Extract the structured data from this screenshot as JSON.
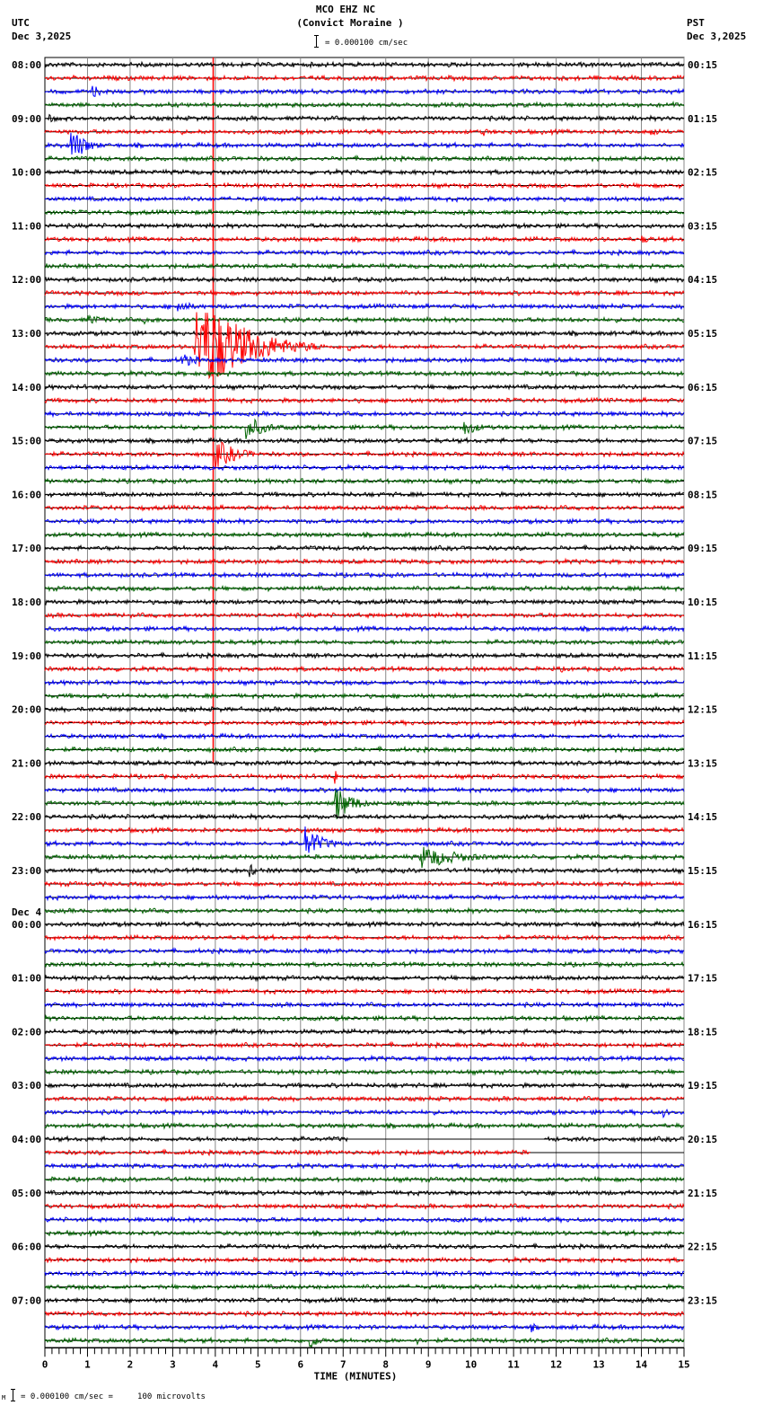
{
  "header": {
    "station": "MCO EHZ NC",
    "location": "(Convict Moraine )",
    "scale_text": "= 0.000100 cm/sec",
    "left_tz": "UTC",
    "left_date": "Dec 3,2025",
    "right_tz": "PST",
    "right_date": "Dec 3,2025"
  },
  "footer": {
    "scale_text": "= 0.000100 cm/sec =     100 microvolts",
    "marker": "M"
  },
  "chart_data": {
    "type": "seismogram",
    "title": "MCO EHZ NC (Convict Moraine )",
    "xlabel": "TIME (MINUTES)",
    "xlim": [
      0,
      15
    ],
    "x_ticks": [
      0,
      1,
      2,
      3,
      4,
      5,
      6,
      7,
      8,
      9,
      10,
      11,
      12,
      13,
      14,
      15
    ],
    "minor_ticks_per_minute": 6,
    "grid": true,
    "traces_per_hour": 4,
    "trace_colors": [
      "#000000",
      "#ff0000",
      "#0000ff",
      "#006400"
    ],
    "left_labels": [
      {
        "row": 0,
        "text": "08:00"
      },
      {
        "row": 4,
        "text": "09:00"
      },
      {
        "row": 8,
        "text": "10:00"
      },
      {
        "row": 12,
        "text": "11:00"
      },
      {
        "row": 16,
        "text": "12:00"
      },
      {
        "row": 20,
        "text": "13:00"
      },
      {
        "row": 24,
        "text": "14:00"
      },
      {
        "row": 28,
        "text": "15:00"
      },
      {
        "row": 32,
        "text": "16:00"
      },
      {
        "row": 36,
        "text": "17:00"
      },
      {
        "row": 40,
        "text": "18:00"
      },
      {
        "row": 44,
        "text": "19:00"
      },
      {
        "row": 48,
        "text": "20:00"
      },
      {
        "row": 52,
        "text": "21:00"
      },
      {
        "row": 56,
        "text": "22:00"
      },
      {
        "row": 60,
        "text": "23:00"
      },
      {
        "row": 64,
        "text": "00:00",
        "date": "Dec 4"
      },
      {
        "row": 68,
        "text": "01:00"
      },
      {
        "row": 72,
        "text": "02:00"
      },
      {
        "row": 76,
        "text": "03:00"
      },
      {
        "row": 80,
        "text": "04:00"
      },
      {
        "row": 84,
        "text": "05:00"
      },
      {
        "row": 88,
        "text": "06:00"
      },
      {
        "row": 92,
        "text": "07:00"
      }
    ],
    "right_labels": [
      {
        "row": 0,
        "text": "00:15"
      },
      {
        "row": 4,
        "text": "01:15"
      },
      {
        "row": 8,
        "text": "02:15"
      },
      {
        "row": 12,
        "text": "03:15"
      },
      {
        "row": 16,
        "text": "04:15"
      },
      {
        "row": 20,
        "text": "05:15"
      },
      {
        "row": 24,
        "text": "06:15"
      },
      {
        "row": 28,
        "text": "07:15"
      },
      {
        "row": 32,
        "text": "08:15"
      },
      {
        "row": 36,
        "text": "09:15"
      },
      {
        "row": 40,
        "text": "10:15"
      },
      {
        "row": 44,
        "text": "11:15"
      },
      {
        "row": 48,
        "text": "12:15"
      },
      {
        "row": 52,
        "text": "13:15"
      },
      {
        "row": 56,
        "text": "14:15"
      },
      {
        "row": 60,
        "text": "15:15"
      },
      {
        "row": 64,
        "text": "16:15"
      },
      {
        "row": 68,
        "text": "17:15"
      },
      {
        "row": 72,
        "text": "18:15"
      },
      {
        "row": 76,
        "text": "19:15"
      },
      {
        "row": 80,
        "text": "20:15"
      },
      {
        "row": 84,
        "text": "21:15"
      },
      {
        "row": 88,
        "text": "22:15"
      },
      {
        "row": 92,
        "text": "23:15"
      }
    ],
    "events": [
      {
        "row": 2,
        "minute": 1.1,
        "amp": 8,
        "dur": 0.8
      },
      {
        "row": 3,
        "minute": 14.7,
        "amp": 6,
        "dur": 0.3
      },
      {
        "row": 4,
        "minute": 0.1,
        "amp": 5,
        "dur": 0.9
      },
      {
        "row": 5,
        "minute": 10.3,
        "amp": 11,
        "dur": 0.2
      },
      {
        "row": 5,
        "minute": 14.2,
        "amp": 6,
        "dur": 0.8
      },
      {
        "row": 6,
        "minute": 0.6,
        "amp": 22,
        "dur": 1.0
      },
      {
        "row": 9,
        "minute": 4.5,
        "amp": 5,
        "dur": 0.2
      },
      {
        "row": 13,
        "minute": 14.0,
        "amp": 5,
        "dur": 1.0
      },
      {
        "row": 18,
        "minute": 3.1,
        "amp": 9,
        "dur": 1.0
      },
      {
        "row": 19,
        "minute": 1.0,
        "amp": 7,
        "dur": 1.2
      },
      {
        "row": 19,
        "minute": 2.3,
        "amp": 5,
        "dur": 1.5
      },
      {
        "row": 21,
        "minute": 3.5,
        "amp": 45,
        "dur": 3.0,
        "big": true
      },
      {
        "row": 21,
        "minute": 7.1,
        "amp": 7,
        "dur": 0.5
      },
      {
        "row": 22,
        "minute": 3.2,
        "amp": 9,
        "dur": 1.2
      },
      {
        "row": 27,
        "minute": 4.7,
        "amp": 14,
        "dur": 1.5
      },
      {
        "row": 27,
        "minute": 9.8,
        "amp": 10,
        "dur": 1.2
      },
      {
        "row": 29,
        "minute": 4.0,
        "amp": 18,
        "dur": 1.5
      },
      {
        "row": 40,
        "minute": 9.7,
        "amp": 8,
        "dur": 0.2
      },
      {
        "row": 45,
        "minute": 12.1,
        "amp": 6,
        "dur": 0.2
      },
      {
        "row": 53,
        "minute": 6.8,
        "amp": 12,
        "dur": 0.2
      },
      {
        "row": 55,
        "minute": 6.8,
        "amp": 22,
        "dur": 1.2
      },
      {
        "row": 58,
        "minute": 6.1,
        "amp": 20,
        "dur": 1.2
      },
      {
        "row": 59,
        "minute": 8.8,
        "amp": 14,
        "dur": 2.8
      },
      {
        "row": 60,
        "minute": 4.8,
        "amp": 8,
        "dur": 0.6
      },
      {
        "row": 78,
        "minute": 14.5,
        "amp": 6,
        "dur": 0.5
      },
      {
        "row": 94,
        "minute": 11.4,
        "amp": 7,
        "dur": 0.4
      },
      {
        "row": 95,
        "minute": 6.2,
        "amp": 10,
        "dur": 0.8
      },
      {
        "row": 95,
        "minute": 8.7,
        "amp": 5,
        "dur": 0.6
      }
    ],
    "vertical_spike": {
      "minute": 3.95,
      "color": "#ff0000",
      "row_start": 0,
      "row_end": 52
    },
    "gaps": [
      {
        "row": 80,
        "from_minute": 7.1,
        "to_minute": 11.7
      },
      {
        "row": 81,
        "from_minute": 11.4,
        "to_minute": 15
      },
      {
        "row": 81,
        "from_minute": 11.4,
        "to_minute": 11.4
      }
    ]
  }
}
